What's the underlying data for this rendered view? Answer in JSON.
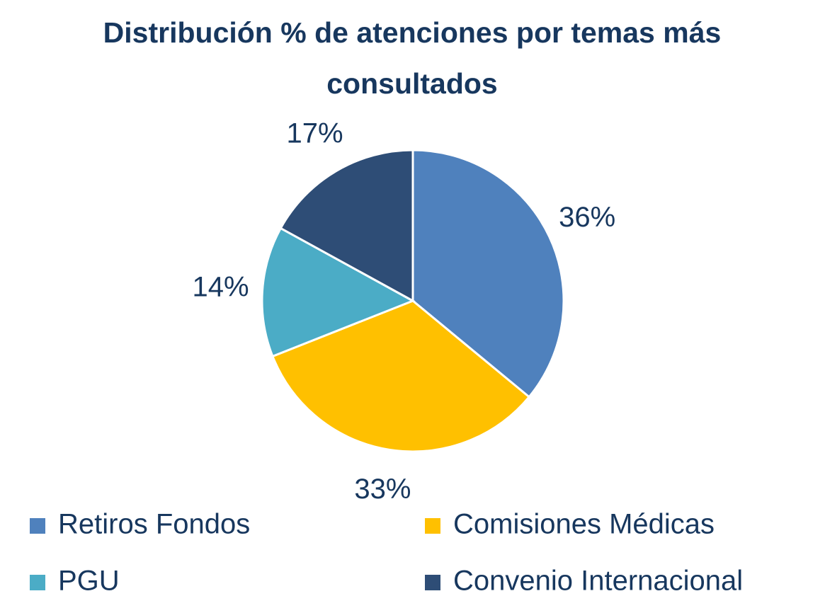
{
  "chart_data": {
    "type": "pie",
    "title": "Distribución % de atenciones por temas más consultados",
    "categories": [
      "Retiros Fondos",
      "Comisiones Médicas",
      "PGU",
      "Convenio Internacional"
    ],
    "values": [
      36,
      33,
      14,
      17
    ],
    "value_labels": [
      "36%",
      "33%",
      "14%",
      "17%"
    ],
    "colors": [
      "#4f81bd",
      "#ffc000",
      "#4bacc6",
      "#2e4d76"
    ],
    "legend": "bottom"
  }
}
